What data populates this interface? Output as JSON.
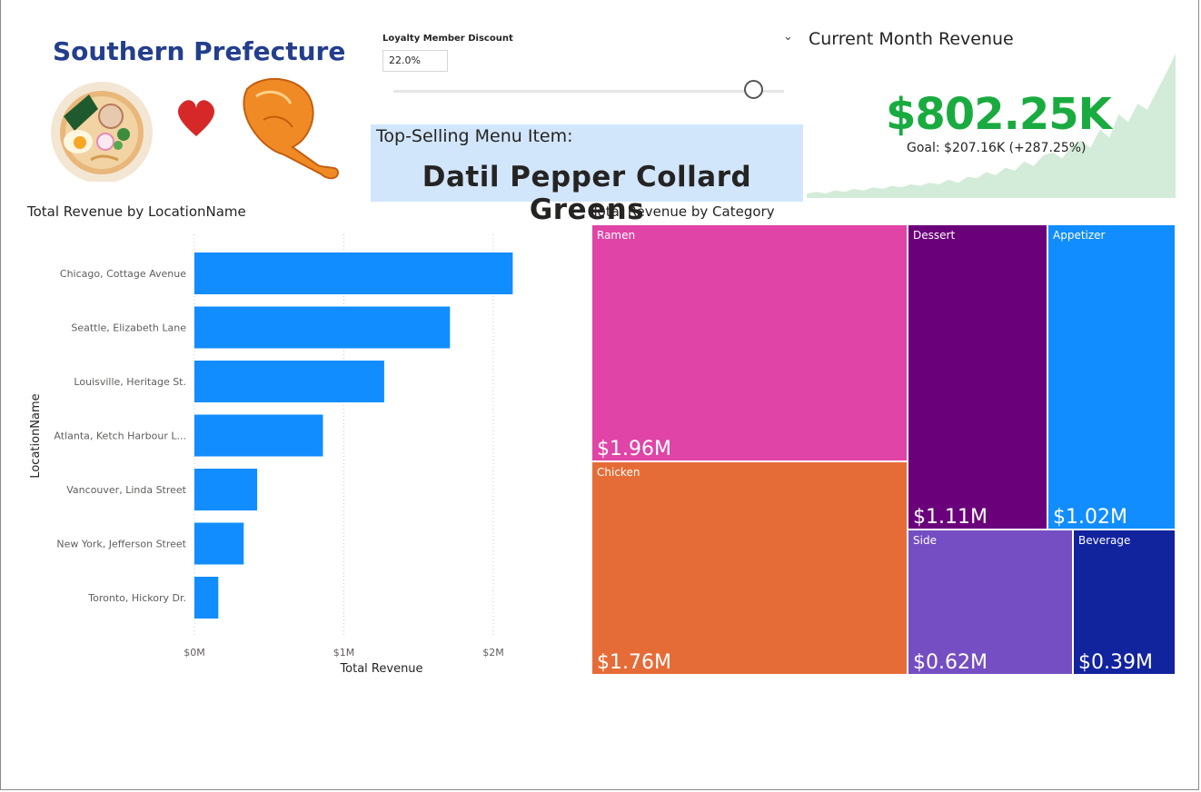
{
  "logo": {
    "title": "Southern Prefecture"
  },
  "slicer": {
    "title": "Loyalty Member Discount",
    "value": "22.0%",
    "fraction": 0.92
  },
  "top_item": {
    "label": "Top-Selling Menu Item:",
    "value": "Datil Pepper Collard Greens"
  },
  "kpi": {
    "title": "Current Month Revenue",
    "value": "$802.25K",
    "goal": "Goal: $207.16K (+287.25%)",
    "colors": {
      "value": "#1aab40",
      "trend": "#d3ecd9"
    },
    "trend": [
      3,
      4,
      3,
      5,
      4,
      6,
      5,
      7,
      6,
      8,
      7,
      9,
      8,
      10,
      9,
      12,
      10,
      14,
      13,
      17,
      15,
      20,
      18,
      24,
      21,
      28,
      30,
      26,
      34,
      38,
      33,
      45,
      40,
      55,
      50,
      62,
      58,
      70,
      82,
      95
    ]
  },
  "bar_chart": {
    "title": "Total Revenue by LocationName",
    "xlabel": "Total Revenue",
    "ylabel": "LocationName",
    "color": "#118dff"
  },
  "treemap": {
    "title": "Total Revenue by Category"
  },
  "chart_data": [
    {
      "type": "bar",
      "orientation": "horizontal",
      "title": "Total Revenue by LocationName",
      "xlabel": "Total Revenue",
      "ylabel": "LocationName",
      "categories": [
        "Chicago, Cottage Avenue",
        "Seattle, Elizabeth Lane",
        "Louisville, Heritage St.",
        "Atlanta, Ketch Harbour L...",
        "Vancouver, Linda Street",
        "New York, Jefferson Street",
        "Toronto, Hickory Dr."
      ],
      "values": [
        2.13,
        1.71,
        1.27,
        0.86,
        0.42,
        0.33,
        0.16
      ],
      "value_units": "millions of dollars",
      "xlim": [
        0,
        2.2
      ],
      "xticks": [
        0,
        1,
        2
      ],
      "xtick_labels": [
        "$0M",
        "$1M",
        "$2M"
      ],
      "grid": "vertical dotted"
    },
    {
      "type": "treemap",
      "title": "Total Revenue by Category",
      "categories": [
        "Ramen",
        "Chicken",
        "Dessert",
        "Appetizer",
        "Side",
        "Beverage"
      ],
      "values": [
        1.96,
        1.76,
        1.11,
        1.02,
        0.62,
        0.39
      ],
      "value_labels": [
        "$1.96M",
        "$1.76M",
        "$1.11M",
        "$1.02M",
        "$0.62M",
        "$0.39M"
      ],
      "colors": [
        "#e044a7",
        "#e66c37",
        "#6b007b",
        "#118dff",
        "#744ec2",
        "#12239e"
      ]
    }
  ]
}
